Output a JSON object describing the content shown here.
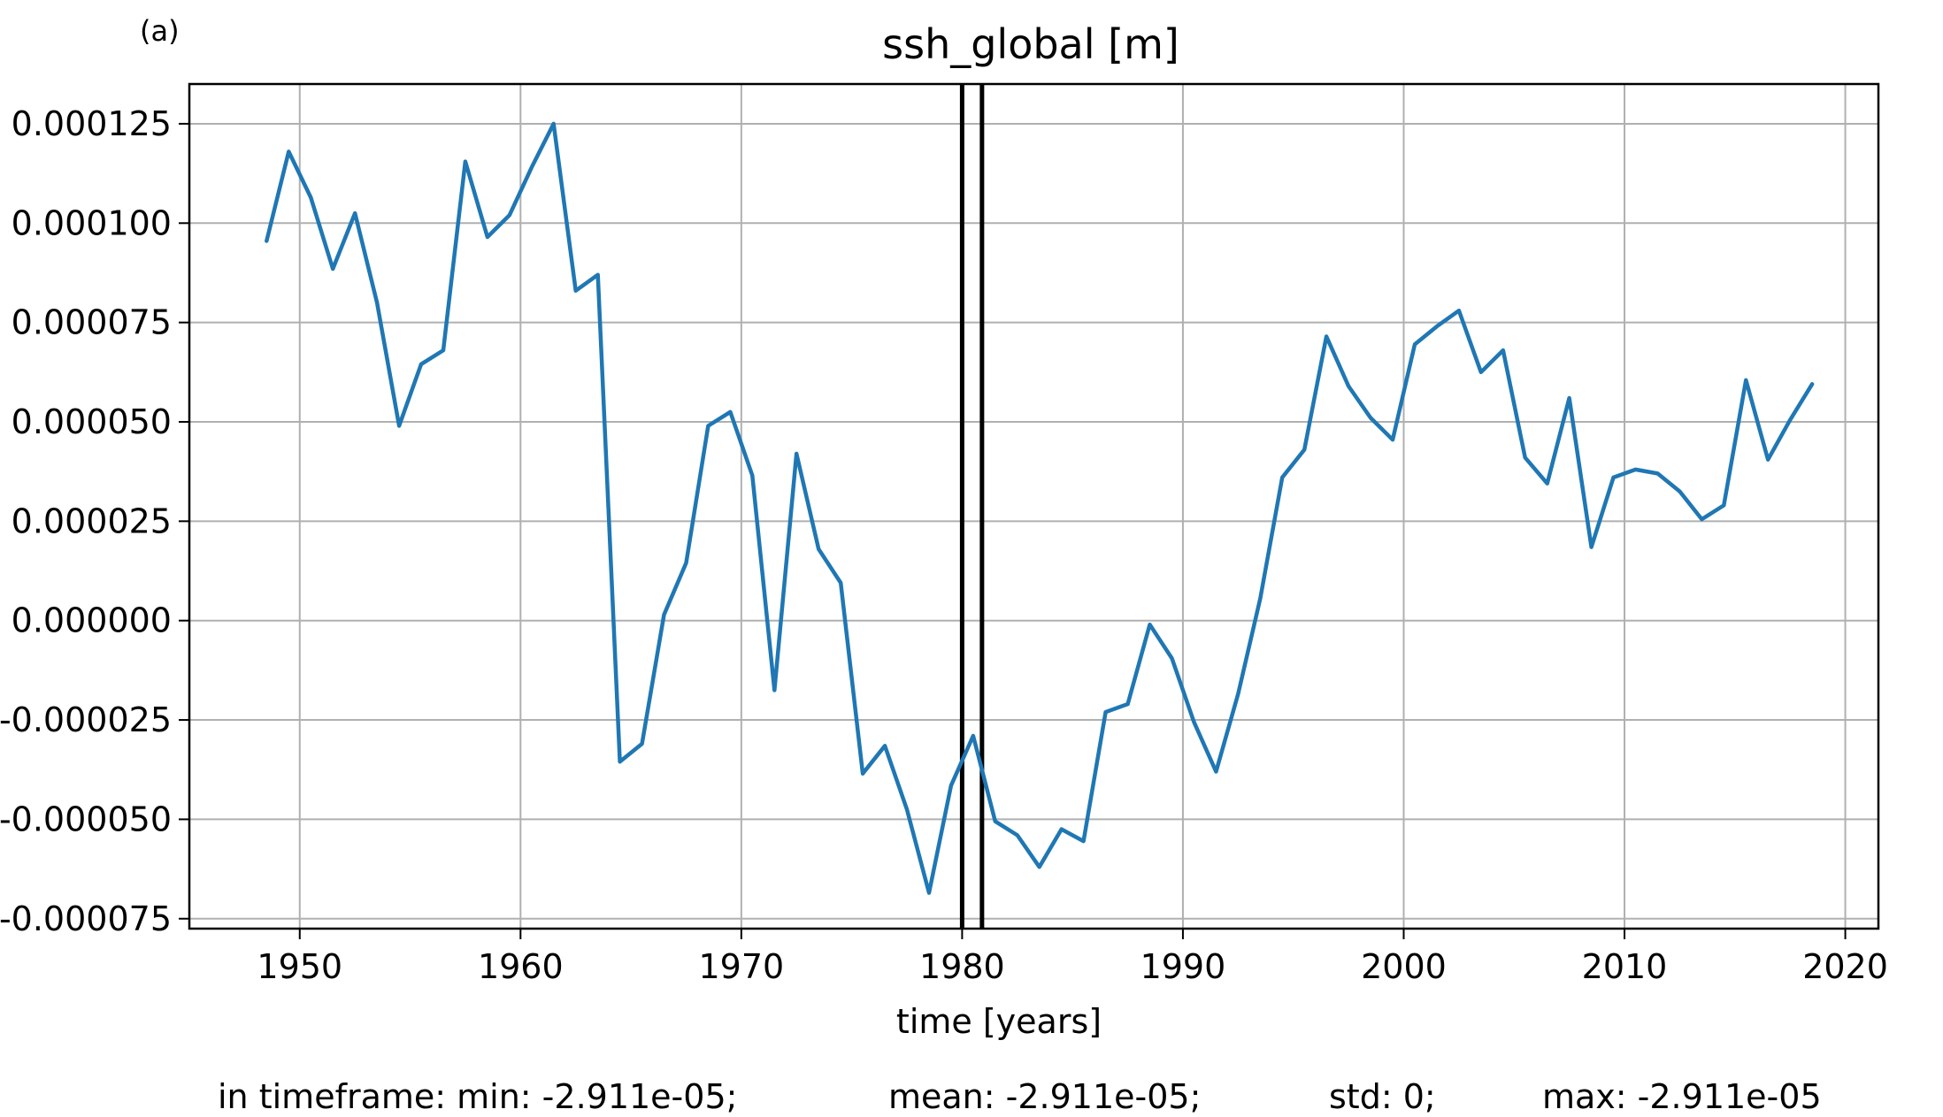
{
  "panel_label": "(a)",
  "chart_data": {
    "type": "line",
    "title": "ssh_global [m]",
    "xlabel": "time [years]",
    "ylabel": "",
    "xlim": [
      1945.0,
      2021.5
    ],
    "ylim": [
      -7.75e-05,
      0.000135
    ],
    "x_ticks": [
      1950,
      1960,
      1970,
      1980,
      1990,
      2000,
      2010,
      2020
    ],
    "x_tick_labels": [
      "1950",
      "1960",
      "1970",
      "1980",
      "1990",
      "2000",
      "2010",
      "2020"
    ],
    "y_ticks": [
      0.000125,
      0.0001,
      7.5e-05,
      5e-05,
      2.5e-05,
      0.0,
      -2.5e-05,
      -5e-05,
      -7.5e-05
    ],
    "y_tick_labels": [
      "0.000125",
      "0.000100",
      "0.000075",
      "0.000050",
      "0.000025",
      "0.000000",
      "-0.000025",
      "-0.000050",
      "-0.000075"
    ],
    "grid": true,
    "vlines": [
      1980.0,
      1980.9
    ],
    "series": [
      {
        "color": "#1f77b4",
        "x": [
          1948.5,
          1949.5,
          1950.5,
          1951.5,
          1952.5,
          1953.5,
          1954.5,
          1955.5,
          1956.5,
          1957.5,
          1958.5,
          1959.5,
          1960.5,
          1961.5,
          1962.5,
          1963.5,
          1964.5,
          1965.5,
          1966.5,
          1967.5,
          1968.5,
          1969.5,
          1970.5,
          1971.5,
          1972.5,
          1973.5,
          1974.5,
          1975.5,
          1976.5,
          1977.5,
          1978.5,
          1979.5,
          1980.5,
          1981.5,
          1982.5,
          1983.5,
          1984.5,
          1985.5,
          1986.5,
          1987.5,
          1988.5,
          1989.5,
          1990.5,
          1991.5,
          1992.5,
          1993.5,
          1994.5,
          1995.5,
          1996.5,
          1997.5,
          1998.5,
          1999.5,
          2000.5,
          2001.5,
          2002.5,
          2003.5,
          2004.5,
          2005.5,
          2006.5,
          2007.5,
          2008.5,
          2009.5,
          2010.5,
          2011.5,
          2012.5,
          2013.5,
          2014.5,
          2015.5,
          2016.5,
          2017.5,
          2018.5
        ],
        "y": [
          9.55e-05,
          0.000118,
          0.0001065,
          8.85e-05,
          0.0001025,
          8e-05,
          4.9e-05,
          6.45e-05,
          6.8e-05,
          0.0001155,
          9.65e-05,
          0.000102,
          0.000114,
          0.000125,
          8.3e-05,
          8.7e-05,
          -3.55e-05,
          -3.1e-05,
          1.5e-06,
          1.45e-05,
          4.9e-05,
          5.25e-05,
          3.65e-05,
          -1.75e-05,
          4.2e-05,
          1.8e-05,
          9.5e-06,
          -3.85e-05,
          -3.15e-05,
          -4.75e-05,
          -6.85e-05,
          -4.15e-05,
          -2.9e-05,
          -5.05e-05,
          -5.4e-05,
          -6.2e-05,
          -5.25e-05,
          -5.55e-05,
          -2.3e-05,
          -2.1e-05,
          -1e-06,
          -9.5e-06,
          -2.55e-05,
          -3.8e-05,
          -1.85e-05,
          5.5e-06,
          3.6e-05,
          4.3e-05,
          7.15e-05,
          5.9e-05,
          5.1e-05,
          4.55e-05,
          6.95e-05,
          7.4e-05,
          7.8e-05,
          6.25e-05,
          6.8e-05,
          4.1e-05,
          3.45e-05,
          5.6e-05,
          1.85e-05,
          3.6e-05,
          3.8e-05,
          3.7e-05,
          3.25e-05,
          2.55e-05,
          2.9e-05,
          6.05e-05,
          4.05e-05,
          5.05e-05,
          5.95e-05
        ]
      }
    ]
  },
  "footer": {
    "min": "in timeframe: min: -2.911e-05;",
    "mean": "mean: -2.911e-05;",
    "std": "std: 0;",
    "max": "max: -2.911e-05"
  }
}
